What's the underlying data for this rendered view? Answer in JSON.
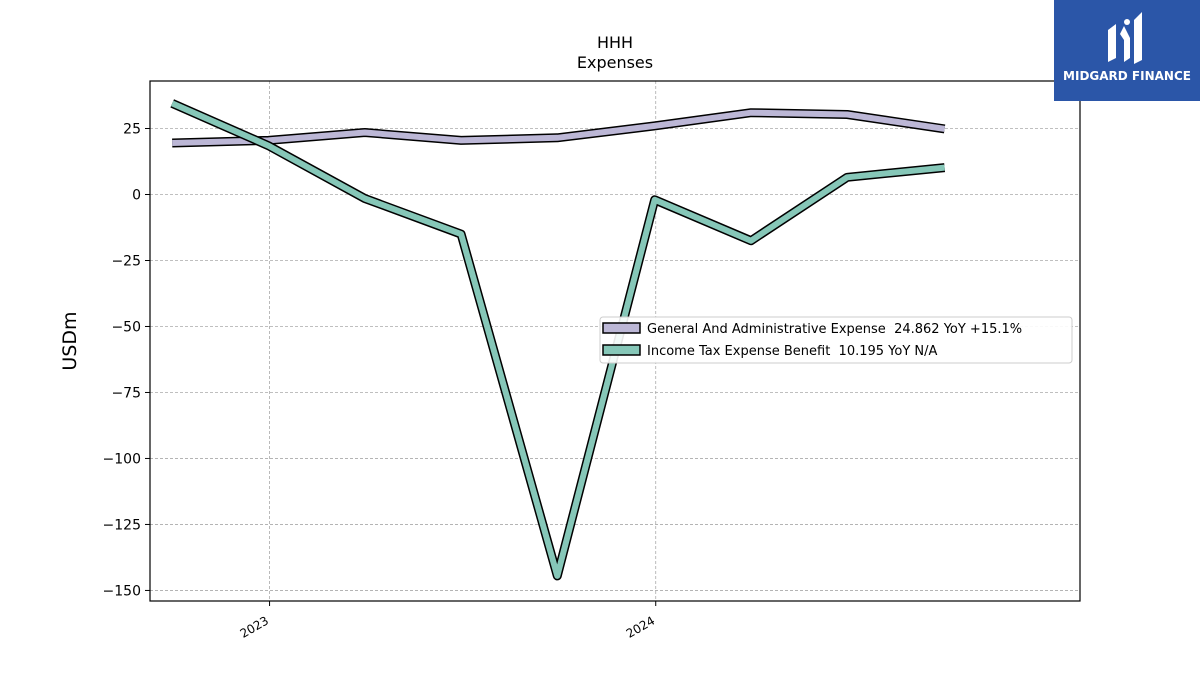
{
  "chart_data": {
    "type": "line",
    "title": "HHH",
    "subtitle": "Expenses",
    "ylabel": "USDm",
    "xlabel": "",
    "ylim": [
      -154,
      43
    ],
    "yticks": [
      25,
      0,
      -25,
      -50,
      -75,
      -100,
      -125,
      -150
    ],
    "ytick_labels": [
      "25",
      "0",
      "−25",
      "−50",
      "−75",
      "−100",
      "−125",
      "−150"
    ],
    "xlim": [
      "2022-09-10",
      "2025-02-05"
    ],
    "xticks": [
      "2023-01-01",
      "2024-01-01"
    ],
    "xtick_labels": [
      "2023",
      "2024"
    ],
    "x": [
      "2022-10-01",
      "2022-12-31",
      "2023-04-01",
      "2023-07-01",
      "2023-09-30",
      "2023-12-31",
      "2024-03-31",
      "2024-06-30",
      "2024-09-30"
    ],
    "grid": true,
    "legend_position": "center-right",
    "series": [
      {
        "name": "General And Administrative Expense  24.862 YoY +15.1%",
        "color": "#bcb7d6",
        "values": [
          19.5,
          20.5,
          23.5,
          20.5,
          21.5,
          26,
          31,
          30.3,
          24.862
        ]
      },
      {
        "name": "Income Tax Expense Benefit  10.195 YoY N/A",
        "color": "#86c7b8",
        "values": [
          34.5,
          18.5,
          -1.5,
          -15,
          -144.5,
          -2,
          -17.5,
          6.5,
          10.195
        ]
      }
    ]
  },
  "logo": {
    "text": "MIDGARD FINANCE",
    "color": "#2b56a8"
  }
}
